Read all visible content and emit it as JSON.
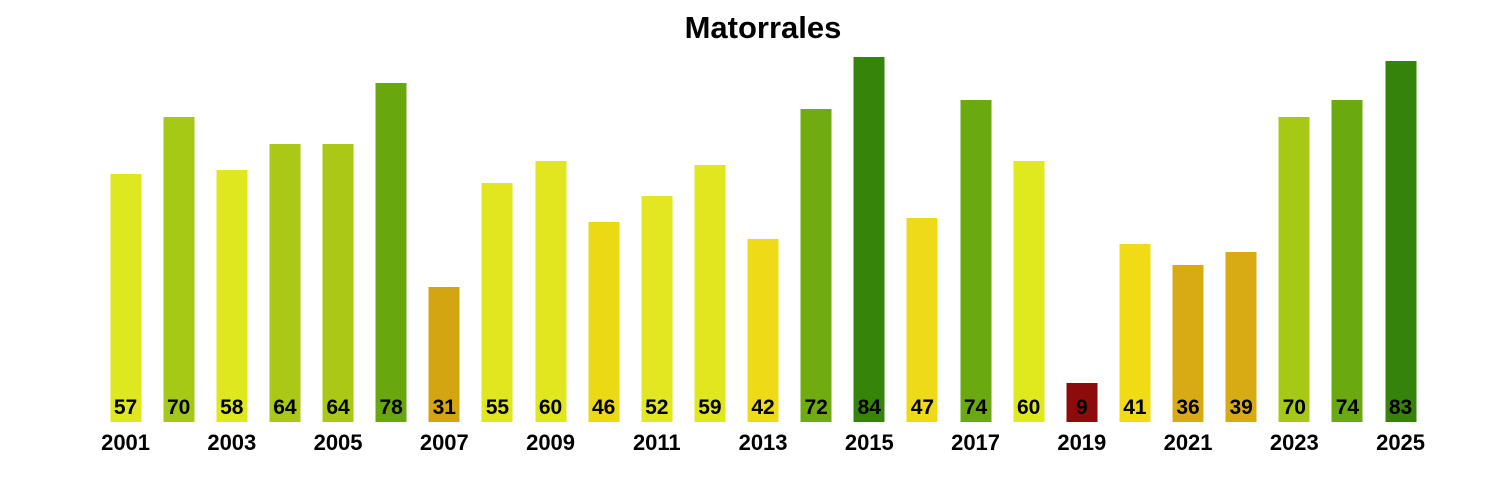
{
  "chart_data": {
    "type": "bar",
    "title": "Matorrales",
    "xlabel": "",
    "ylabel": "",
    "categories": [
      2001,
      2002,
      2003,
      2004,
      2005,
      2006,
      2007,
      2008,
      2009,
      2010,
      2011,
      2012,
      2013,
      2014,
      2015,
      2016,
      2017,
      2018,
      2019,
      2020,
      2021,
      2022,
      2023,
      2024,
      2025
    ],
    "values": [
      57,
      70,
      58,
      64,
      64,
      78,
      31,
      55,
      60,
      46,
      52,
      59,
      42,
      72,
      84,
      47,
      74,
      60,
      9,
      41,
      36,
      39,
      70,
      74,
      83
    ],
    "bar_colors": [
      "#dfe71e",
      "#a6c916",
      "#dfe71e",
      "#abc816",
      "#abc816",
      "#68a70d",
      "#d2a511",
      "#e0e71f",
      "#e1e71f",
      "#edd814",
      "#e2e722",
      "#e0e71f",
      "#eeda16",
      "#70ab10",
      "#36840a",
      "#eeda18",
      "#6aa90f",
      "#e0e81e",
      "#8e0b0b",
      "#f0db15",
      "#d8ab15",
      "#d8ab15",
      "#a6c916",
      "#6aa90f",
      "#35830a"
    ],
    "x_tick_labels": [
      "2001",
      "2003",
      "2005",
      "2007",
      "2009",
      "2011",
      "2013",
      "2015",
      "2017",
      "2019",
      "2021",
      "2023",
      "2025"
    ],
    "value_labels_shown": true,
    "value_label_color": "#000000",
    "title_color": "#000000",
    "background": "#ffffff",
    "ylim": [
      0,
      97
    ],
    "grid": false,
    "legend": false,
    "y_axis_shown": false,
    "x_axis_line_shown": false
  }
}
